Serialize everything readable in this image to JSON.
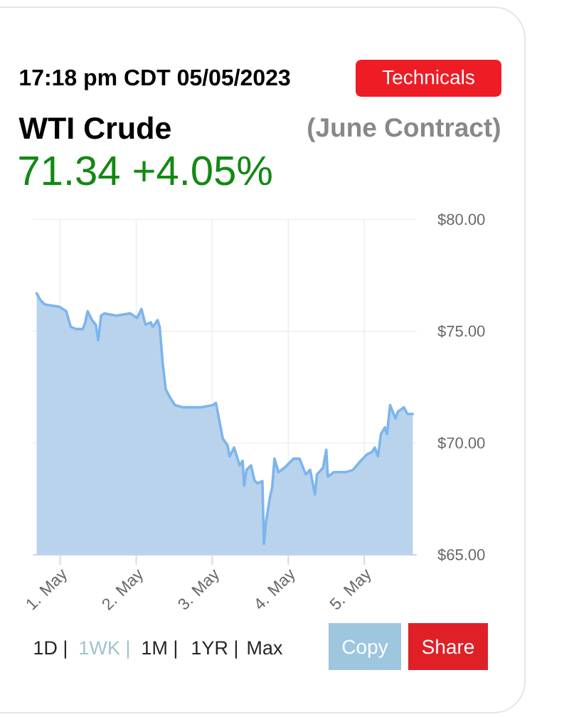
{
  "chart_data": {
    "type": "area",
    "title": "WTI Crude",
    "subtitle": "(June Contract)",
    "annotations": [
      "17:18 pm CDT 05/05/2023",
      "Technicals",
      "71.34 +4.05%",
      "1D |",
      "1WK |",
      "1M |",
      "1YR |",
      "Max",
      "Copy",
      "Share"
    ],
    "x": [
      "2023-04-30T16:35",
      "2023-04-30T17:45",
      "2023-04-30T19:10",
      "2023-04-30T23:45",
      "2023-05-01T01:55",
      "2023-05-01T03:20",
      "2023-05-01T05:00",
      "2023-05-01T07:10",
      "2023-05-01T07:55",
      "2023-05-01T08:40",
      "2023-05-01T10:05",
      "2023-05-01T11:15",
      "2023-05-01T12:00",
      "2023-05-01T12:55",
      "2023-05-01T13:55",
      "2023-05-01T17:45",
      "2023-05-01T22:05",
      "2023-05-02T00:15",
      "2023-05-02T01:40",
      "2023-05-02T02:55",
      "2023-05-02T04:35",
      "2023-05-02T05:15",
      "2023-05-02T06:45",
      "2023-05-02T07:25",
      "2023-05-02T08:25",
      "2023-05-02T09:20",
      "2023-05-02T10:50",
      "2023-05-02T12:15",
      "2023-05-02T14:40",
      "2023-05-02T20:40",
      "2023-05-03T00:15",
      "2023-05-03T01:10",
      "2023-05-03T02:40",
      "2023-05-03T03:20",
      "2023-05-03T04:50",
      "2023-05-03T05:30",
      "2023-05-03T06:55",
      "2023-05-03T08:40",
      "2023-05-03T09:35",
      "2023-05-03T10:05",
      "2023-05-03T10:50",
      "2023-05-03T12:15",
      "2023-05-03T13:25",
      "2023-05-03T14:25",
      "2023-05-03T15:50",
      "2023-05-03T16:20",
      "2023-05-03T17:00",
      "2023-05-03T18:15",
      "2023-05-03T18:55",
      "2023-05-03T19:40",
      "2023-05-03T20:55",
      "2023-05-03T22:50",
      "2023-05-04T01:40",
      "2023-05-04T03:35",
      "2023-05-04T05:30",
      "2023-05-04T06:55",
      "2023-05-04T08:25",
      "2023-05-04T09:05",
      "2023-05-04T11:00",
      "2023-05-04T12:00",
      "2023-05-04T12:30",
      "2023-05-04T14:25",
      "2023-05-04T18:15",
      "2023-05-04T20:25",
      "2023-05-04T22:50",
      "2023-05-05T00:55",
      "2023-05-05T02:25",
      "2023-05-05T03:20",
      "2023-05-05T04:20",
      "2023-05-05T05:15",
      "2023-05-05T06:30",
      "2023-05-05T07:10",
      "2023-05-05T08:10",
      "2023-05-05T09:50",
      "2023-05-05T10:35",
      "2023-05-05T12:30",
      "2023-05-05T13:40",
      "2023-05-05T15:20"
    ],
    "values": [
      76.7,
      76.4,
      76.2,
      76.1,
      75.9,
      75.2,
      75.1,
      75.1,
      75.4,
      75.9,
      75.5,
      75.3,
      74.6,
      75.7,
      75.8,
      75.7,
      75.8,
      75.6,
      76.0,
      75.3,
      75.4,
      75.2,
      75.5,
      75.2,
      73.5,
      72.4,
      72.0,
      71.7,
      71.6,
      71.6,
      71.7,
      71.8,
      70.7,
      70.2,
      69.9,
      69.4,
      69.8,
      69.0,
      69.2,
      68.1,
      68.8,
      69.0,
      68.3,
      68.2,
      68.3,
      65.5,
      66.5,
      67.6,
      68.0,
      69.3,
      68.7,
      68.9,
      69.3,
      69.3,
      68.6,
      68.8,
      67.7,
      68.6,
      68.9,
      69.7,
      68.5,
      68.7,
      68.7,
      68.8,
      69.2,
      69.5,
      69.6,
      69.8,
      69.4,
      70.4,
      70.7,
      70.4,
      71.7,
      71.1,
      71.4,
      71.6,
      71.3,
      71.3
    ],
    "color": "#7cb5ec",
    "xlim": [
      "2023-04-30T15:20",
      "2023-05-05T16:35"
    ],
    "xticks": [
      {
        "value": "2023-05-01",
        "label": "1. May"
      },
      {
        "value": "2023-05-02",
        "label": "2. May"
      },
      {
        "value": "2023-05-03",
        "label": "3. May"
      },
      {
        "value": "2023-05-04",
        "label": "4. May"
      },
      {
        "value": "2023-05-05",
        "label": "5. May"
      }
    ],
    "ylim": [
      65,
      80
    ],
    "yticks": [
      {
        "value": 65,
        "label": "$65.00"
      },
      {
        "value": 70,
        "label": "$70.00"
      },
      {
        "value": 75,
        "label": "$75.00"
      },
      {
        "value": 80,
        "label": "$80.00"
      }
    ],
    "grid": true
  }
}
